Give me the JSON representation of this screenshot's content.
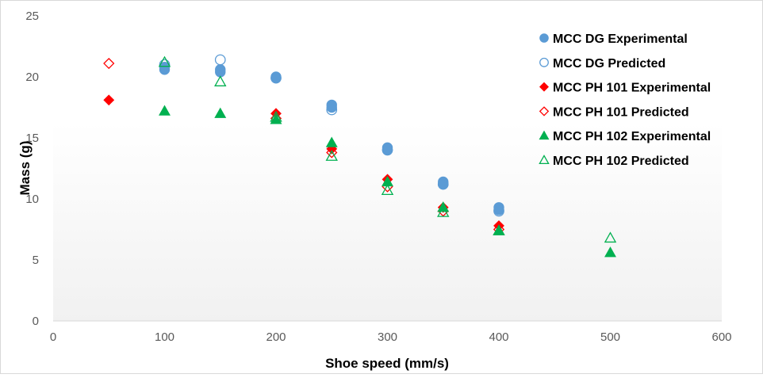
{
  "chart_data": {
    "type": "scatter",
    "title": "",
    "xlabel": "Shoe speed (mm/s)",
    "ylabel": "Mass (g)",
    "xlim": [
      0,
      600
    ],
    "ylim": [
      0,
      25
    ],
    "xticks": [
      0,
      100,
      200,
      300,
      400,
      500,
      600
    ],
    "yticks": [
      0,
      5,
      10,
      15,
      20,
      25
    ],
    "grid": false,
    "legend_position": "right",
    "series": [
      {
        "name": "MCC DG Experimental",
        "marker": "circle",
        "filled": true,
        "color": "#5b9bd5",
        "points": [
          [
            100,
            20.6
          ],
          [
            100,
            20.8
          ],
          [
            150,
            20.4
          ],
          [
            150,
            20.6
          ],
          [
            200,
            19.9
          ],
          [
            200,
            20.0
          ],
          [
            250,
            17.5
          ],
          [
            250,
            17.7
          ],
          [
            300,
            14.0
          ],
          [
            300,
            14.2
          ],
          [
            350,
            11.2
          ],
          [
            350,
            11.4
          ],
          [
            400,
            9.1
          ],
          [
            400,
            9.3
          ]
        ]
      },
      {
        "name": "MCC DG Predicted",
        "marker": "circle",
        "filled": false,
        "color": "#5b9bd5",
        "points": [
          [
            100,
            21.0
          ],
          [
            150,
            21.4
          ],
          [
            200,
            19.9
          ],
          [
            250,
            17.3
          ],
          [
            300,
            14.0
          ],
          [
            350,
            11.2
          ],
          [
            400,
            9.0
          ]
        ]
      },
      {
        "name": "MCC PH 101 Experimental",
        "marker": "diamond",
        "filled": true,
        "color": "#ff0000",
        "points": [
          [
            50,
            18.1
          ],
          [
            200,
            17.0
          ],
          [
            250,
            14.1
          ],
          [
            300,
            11.6
          ],
          [
            350,
            9.3
          ],
          [
            400,
            7.8
          ]
        ]
      },
      {
        "name": "MCC PH 101 Predicted",
        "marker": "diamond",
        "filled": false,
        "color": "#ff0000",
        "points": [
          [
            50,
            21.1
          ],
          [
            200,
            16.6
          ],
          [
            250,
            13.8
          ],
          [
            300,
            11.0
          ],
          [
            350,
            9.0
          ],
          [
            400,
            7.5
          ]
        ]
      },
      {
        "name": "MCC PH 102 Experimental",
        "marker": "triangle",
        "filled": true,
        "color": "#00b050",
        "points": [
          [
            100,
            17.2
          ],
          [
            150,
            17.0
          ],
          [
            200,
            16.5
          ],
          [
            250,
            14.6
          ],
          [
            300,
            11.4
          ],
          [
            350,
            9.3
          ],
          [
            400,
            7.4
          ],
          [
            500,
            5.6
          ]
        ]
      },
      {
        "name": "MCC PH 102 Predicted",
        "marker": "triangle",
        "filled": false,
        "color": "#00b050",
        "points": [
          [
            100,
            21.2
          ],
          [
            150,
            19.6
          ],
          [
            200,
            16.7
          ],
          [
            250,
            13.5
          ],
          [
            300,
            10.7
          ],
          [
            350,
            8.9
          ],
          [
            400,
            7.4
          ],
          [
            500,
            6.8
          ]
        ]
      }
    ]
  }
}
